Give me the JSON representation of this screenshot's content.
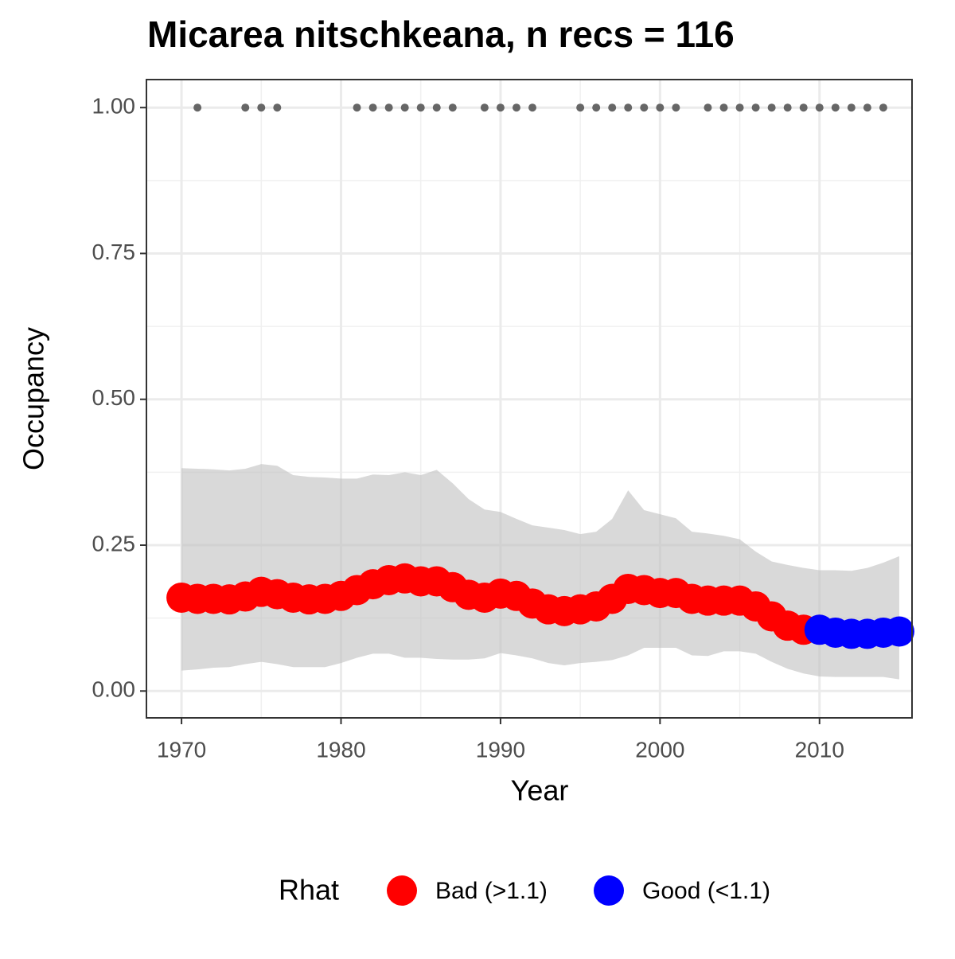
{
  "chart_data": {
    "type": "scatter",
    "title": "Micarea nitschkeana, n recs = 116",
    "x_label": "Year",
    "y_label": "Occupancy",
    "legend_title": "Rhat",
    "x": [
      1970,
      1971,
      1972,
      1973,
      1974,
      1975,
      1976,
      1977,
      1978,
      1979,
      1980,
      1981,
      1982,
      1983,
      1984,
      1985,
      1986,
      1987,
      1988,
      1989,
      1990,
      1991,
      1992,
      1993,
      1994,
      1995,
      1996,
      1997,
      1998,
      1999,
      2000,
      2001,
      2002,
      2003,
      2004,
      2005,
      2006,
      2007,
      2008,
      2009,
      2010,
      2011,
      2012,
      2013,
      2014,
      2015
    ],
    "series": [
      {
        "name": "Bad (>1.1)",
        "color": "#ff0000",
        "values": [
          0.16,
          0.158,
          0.158,
          0.157,
          0.162,
          0.17,
          0.166,
          0.16,
          0.157,
          0.158,
          0.163,
          0.173,
          0.183,
          0.19,
          0.193,
          0.188,
          0.188,
          0.178,
          0.165,
          0.16,
          0.167,
          0.163,
          0.15,
          0.14,
          0.137,
          0.14,
          0.145,
          0.158,
          0.175,
          0.173,
          0.168,
          0.168,
          0.158,
          0.155,
          0.155,
          0.155,
          0.145,
          0.128,
          0.112,
          0.105,
          null,
          null,
          null,
          null,
          null,
          null
        ]
      },
      {
        "name": "Good (<1.1)",
        "color": "#0000ff",
        "values": [
          null,
          null,
          null,
          null,
          null,
          null,
          null,
          null,
          null,
          null,
          null,
          null,
          null,
          null,
          null,
          null,
          null,
          null,
          null,
          null,
          null,
          null,
          null,
          null,
          null,
          null,
          null,
          null,
          null,
          null,
          null,
          null,
          null,
          null,
          null,
          null,
          null,
          null,
          null,
          null,
          0.105,
          0.1,
          0.098,
          0.098,
          0.1,
          0.102
        ]
      }
    ],
    "band": {
      "color": "#bfbfbf",
      "lower": [
        0.035,
        0.037,
        0.04,
        0.041,
        0.046,
        0.05,
        0.046,
        0.041,
        0.041,
        0.041,
        0.048,
        0.057,
        0.064,
        0.064,
        0.057,
        0.057,
        0.055,
        0.054,
        0.054,
        0.056,
        0.065,
        0.061,
        0.056,
        0.048,
        0.044,
        0.048,
        0.05,
        0.053,
        0.061,
        0.074,
        0.074,
        0.074,
        0.061,
        0.06,
        0.068,
        0.068,
        0.064,
        0.05,
        0.038,
        0.03,
        0.025,
        0.024,
        0.024,
        0.024,
        0.024,
        0.02
      ],
      "upper": [
        0.382,
        0.381,
        0.38,
        0.378,
        0.381,
        0.389,
        0.386,
        0.37,
        0.367,
        0.366,
        0.364,
        0.364,
        0.371,
        0.37,
        0.375,
        0.37,
        0.379,
        0.356,
        0.329,
        0.311,
        0.307,
        0.295,
        0.284,
        0.28,
        0.276,
        0.269,
        0.273,
        0.295,
        0.344,
        0.31,
        0.303,
        0.296,
        0.273,
        0.27,
        0.266,
        0.26,
        0.239,
        0.222,
        0.216,
        0.211,
        0.207,
        0.207,
        0.206,
        0.211,
        0.22,
        0.231
      ]
    },
    "records": {
      "color": "#666666",
      "x": [
        1971,
        1974,
        1975,
        1976,
        1981,
        1982,
        1983,
        1984,
        1985,
        1986,
        1987,
        1989,
        1990,
        1991,
        1992,
        1995,
        1996,
        1997,
        1998,
        1999,
        2000,
        2001,
        2003,
        2004,
        2005,
        2006,
        2007,
        2008,
        2009,
        2010,
        2011,
        2012,
        2013,
        2014
      ],
      "values": [
        1,
        1,
        1,
        1,
        1,
        1,
        1,
        1,
        1,
        1,
        1,
        1,
        1,
        1,
        1,
        1,
        1,
        1,
        1,
        1,
        1,
        1,
        1,
        1,
        1,
        1,
        1,
        1,
        1,
        1,
        1,
        1,
        1,
        1
      ]
    },
    "xlim": [
      1967.8,
      2015.8
    ],
    "ylim": [
      -0.046,
      1.048
    ],
    "xticks": [
      1970,
      1980,
      1990,
      2000,
      2010
    ],
    "yticks": [
      {
        "value": 0,
        "label": "0.00"
      },
      {
        "value": 0.25,
        "label": "0.25"
      },
      {
        "value": 0.5,
        "label": "0.50"
      },
      {
        "value": 0.75,
        "label": "0.75"
      },
      {
        "value": 1,
        "label": "1.00"
      }
    ],
    "grid": true,
    "legend_position": "bottom"
  }
}
